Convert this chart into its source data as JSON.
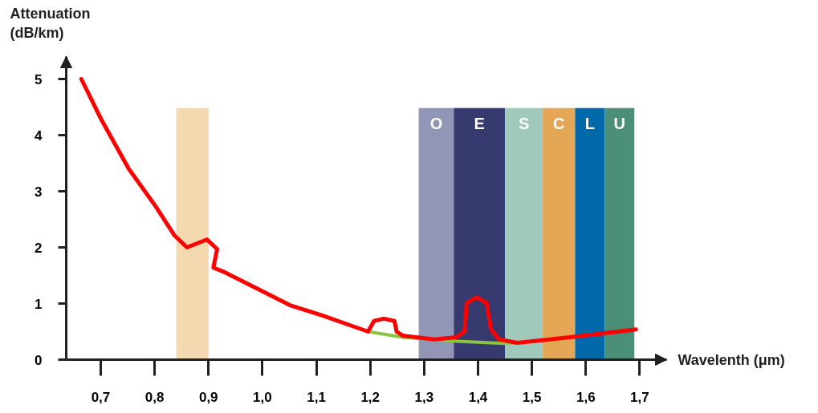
{
  "chart_data": {
    "type": "line",
    "xlabel": "Wavelenth (μm)",
    "ylabel": "Attenuation\n(dB/km)",
    "xlim": [
      0.636,
      1.75
    ],
    "ylim": [
      0,
      5.4
    ],
    "xticks": [
      {
        "value": 0.7,
        "label": "0,7"
      },
      {
        "value": 0.8,
        "label": "0,8"
      },
      {
        "value": 0.9,
        "label": "0,9"
      },
      {
        "value": 1.0,
        "label": "1,0"
      },
      {
        "value": 1.1,
        "label": "1,1"
      },
      {
        "value": 1.2,
        "label": "1,2"
      },
      {
        "value": 1.3,
        "label": "1,3"
      },
      {
        "value": 1.4,
        "label": "1,4"
      },
      {
        "value": 1.5,
        "label": "1,5"
      },
      {
        "value": 1.6,
        "label": "1,6"
      },
      {
        "value": 1.7,
        "label": "1,7"
      }
    ],
    "yticks": [
      0,
      1,
      2,
      3,
      4,
      5
    ],
    "grid": false,
    "marker": "none",
    "line_style": "solid",
    "bands": [
      {
        "axis": "x",
        "from": 0.84,
        "to": 0.9,
        "label": null,
        "color": "#f3d8b0"
      },
      {
        "axis": "x",
        "from": 1.29,
        "to": 1.355,
        "label": "O",
        "color": "#9195b6"
      },
      {
        "axis": "x",
        "from": 1.355,
        "to": 1.45,
        "label": "E",
        "color": "#363a6f"
      },
      {
        "axis": "x",
        "from": 1.45,
        "to": 1.52,
        "label": "S",
        "color": "#9fc9ba"
      },
      {
        "axis": "x",
        "from": 1.52,
        "to": 1.58,
        "label": "C",
        "color": "#e3a756"
      },
      {
        "axis": "x",
        "from": 1.58,
        "to": 1.635,
        "label": "L",
        "color": "#0168aa"
      },
      {
        "axis": "x",
        "from": 1.635,
        "to": 1.69,
        "label": "U",
        "color": "#4b8f79"
      }
    ],
    "series": [
      {
        "color": "#8cc63f",
        "x": [
          1.196,
          1.26,
          1.36,
          1.449,
          1.473
        ],
        "values": [
          0.5,
          0.4,
          0.33,
          0.29,
          0.3
        ]
      },
      {
        "color": "#ff0000",
        "x": [
          0.664,
          0.702,
          0.752,
          0.802,
          0.837,
          0.86,
          0.897,
          0.916,
          0.909,
          0.927,
          1.051,
          1.11,
          1.196,
          1.207,
          1.225,
          1.245,
          1.249,
          1.26,
          1.319,
          1.36,
          1.375,
          1.379,
          1.397,
          1.416,
          1.424,
          1.439,
          1.473,
          1.533,
          1.607,
          1.693
        ],
        "values": [
          5.0,
          4.26,
          3.4,
          2.73,
          2.21,
          2.0,
          2.14,
          1.97,
          1.64,
          1.57,
          0.97,
          0.79,
          0.5,
          0.69,
          0.73,
          0.69,
          0.5,
          0.43,
          0.36,
          0.4,
          0.5,
          1.01,
          1.11,
          1.01,
          0.54,
          0.36,
          0.3,
          0.36,
          0.44,
          0.54
        ]
      }
    ]
  }
}
